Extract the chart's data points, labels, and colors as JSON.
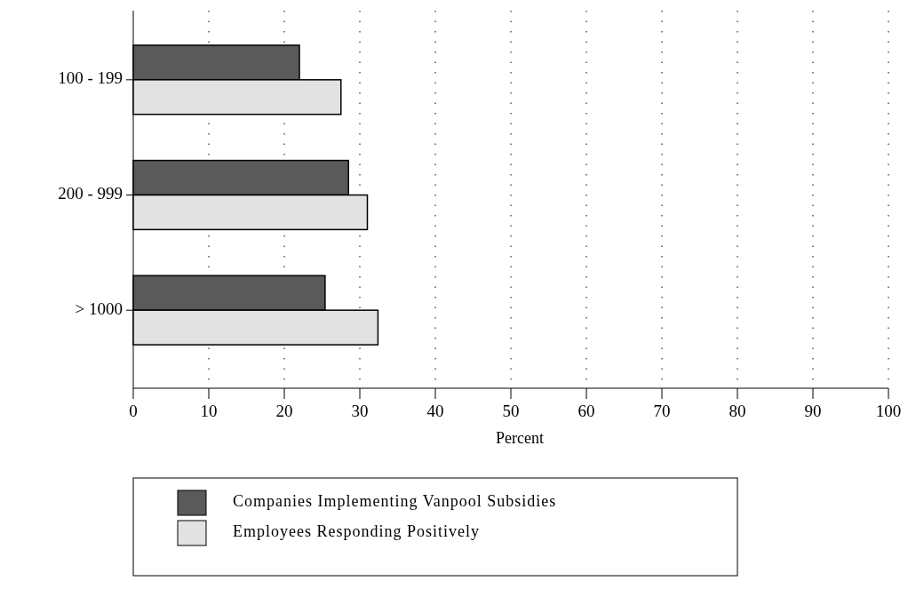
{
  "chart_data": {
    "type": "bar",
    "orientation": "horizontal",
    "categories": [
      "100 - 199",
      "200 - 999",
      "> 1000"
    ],
    "xlabel": "Percent",
    "series": [
      {
        "name": "Companies Implementing Vanpool Subsidies",
        "color": "#5a5a5a",
        "values": [
          22,
          28.5,
          25.4
        ]
      },
      {
        "name": "Employees Responding Positively",
        "color": "#e2e2e2",
        "values": [
          27.5,
          31,
          32.4
        ]
      }
    ],
    "xlim": [
      0,
      100
    ],
    "xticks": [
      0,
      10,
      20,
      30,
      40,
      50,
      60,
      70,
      80,
      90,
      100
    ],
    "grid": "x",
    "legend": "bottom"
  }
}
